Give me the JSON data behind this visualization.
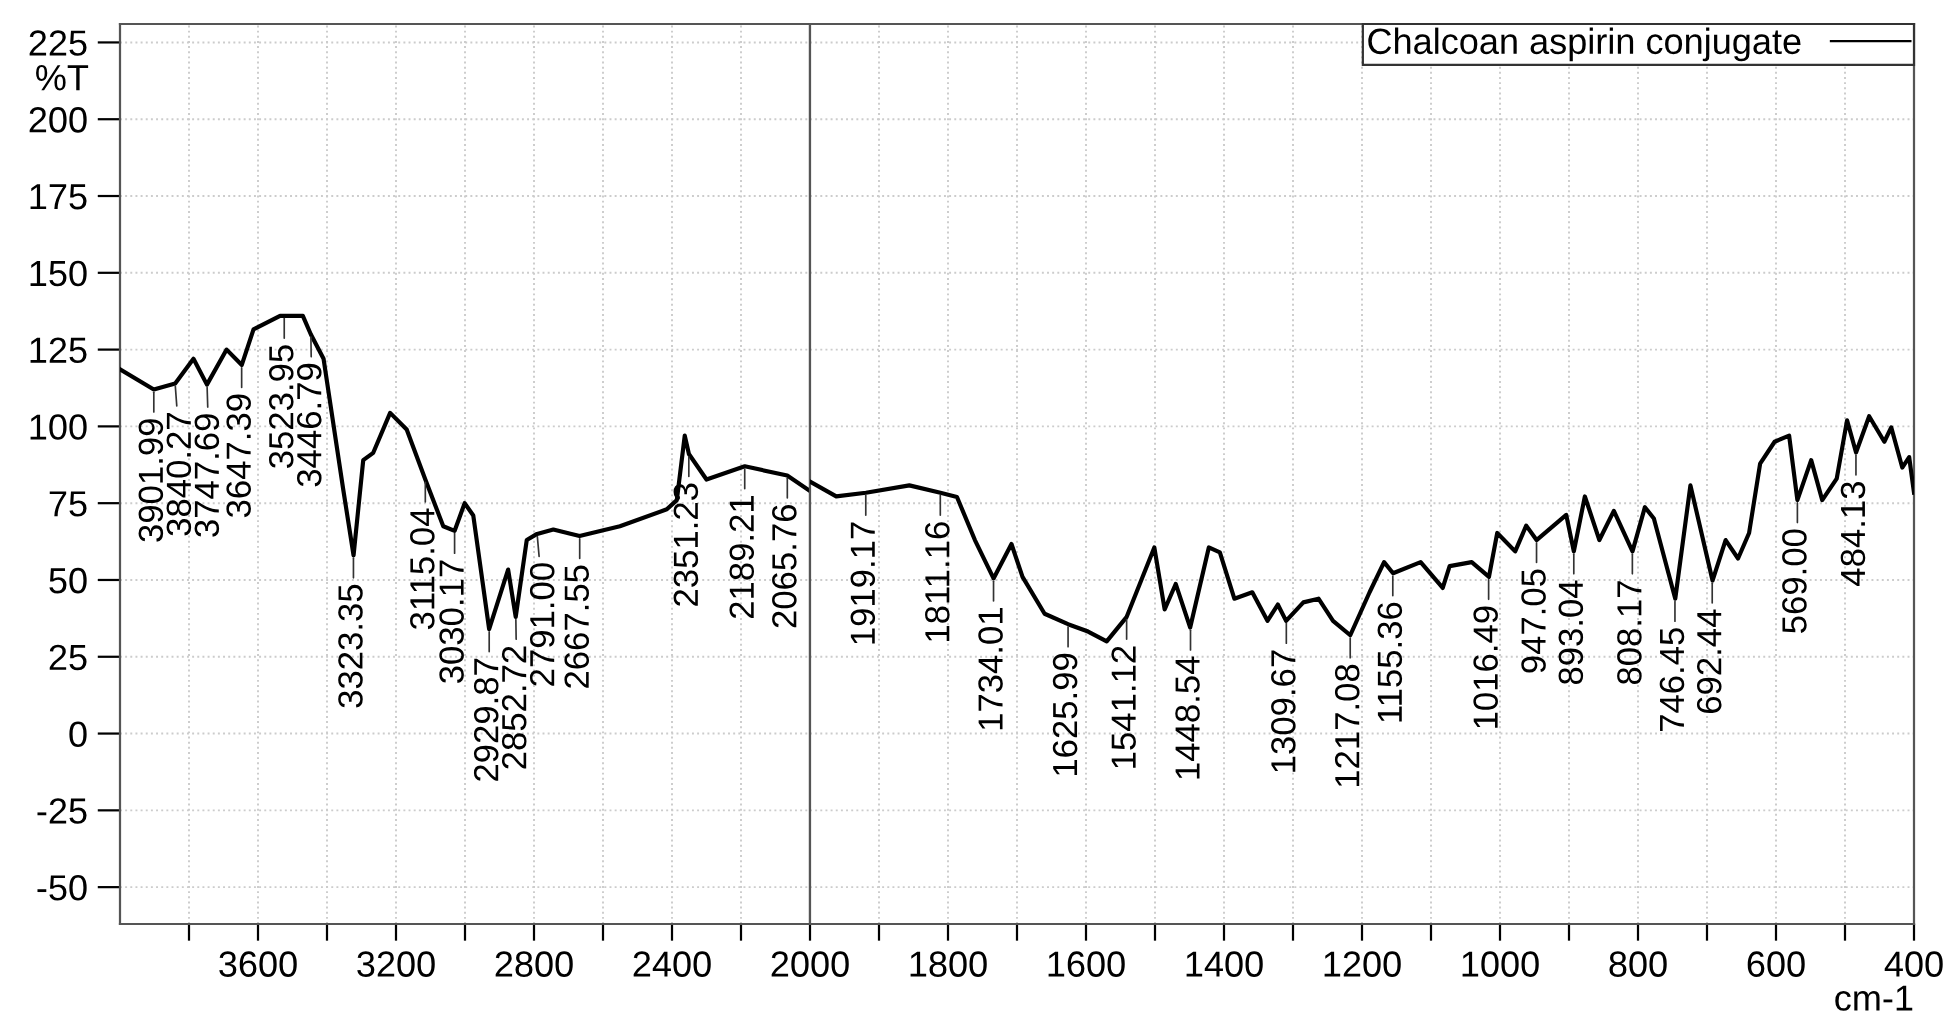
{
  "chart_data": [
    {
      "type": "line",
      "ylabel": "%T",
      "xlim": [
        4000,
        2000
      ],
      "ylim": [
        -62,
        231
      ],
      "xticks": [
        {
          "value": 3800,
          "label": null
        },
        3600,
        {
          "value": 3400,
          "label": null
        },
        3200,
        {
          "value": 3000,
          "label": null
        },
        2800,
        {
          "value": 2600,
          "label": null
        },
        2400,
        {
          "value": 2200,
          "label": null
        },
        2000
      ],
      "yticks": [
        -50,
        -25,
        0,
        25,
        50,
        75,
        100,
        125,
        150,
        175,
        200,
        225
      ],
      "grid": true,
      "line_style": "solid",
      "marker": "none",
      "series": [
        {
          "color": "#000000",
          "x": [
            4000,
            3902,
            3840,
            3787,
            3748,
            3691,
            3647,
            3613,
            3536,
            3524,
            3470,
            3447,
            3410,
            3353,
            3323,
            3295,
            3266,
            3217,
            3169,
            3115,
            3063,
            3030,
            3001,
            2976,
            2930,
            2875,
            2853,
            2821,
            2791,
            2744,
            2668,
            2551,
            2415,
            2386,
            2363,
            2351,
            2300,
            2189,
            2066,
            2000
          ],
          "values": [
            118.6,
            112,
            114,
            122,
            113.6,
            125,
            120,
            131.6,
            136,
            136,
            136,
            130,
            122,
            79.5,
            58,
            89,
            91.4,
            104.4,
            99,
            82.7,
            67.5,
            66,
            75,
            71,
            34,
            53.4,
            38,
            63,
            65,
            66.4,
            64.3,
            67.5,
            73,
            76,
            97,
            91,
            82.7,
            87,
            84,
            79
          ]
        }
      ],
      "annotations": [
        {
          "text": "3901.99",
          "x": 3901.99,
          "y": 112
        },
        {
          "text": "3840.27",
          "x": 3840.27,
          "y": 114
        },
        {
          "text": "3747.69",
          "x": 3747.69,
          "y": 113.6
        },
        {
          "text": "3647.39",
          "x": 3647.39,
          "y": 120
        },
        {
          "text": "3523.95",
          "x": 3523.95,
          "y": 136
        },
        {
          "text": "3446.79",
          "x": 3446.79,
          "y": 130
        },
        {
          "text": "3323.35",
          "x": 3323.35,
          "y": 58
        },
        {
          "text": "3115.04",
          "x": 3115.04,
          "y": 82.7
        },
        {
          "text": "3030.17",
          "x": 3030.17,
          "y": 66
        },
        {
          "text": "2929.87",
          "x": 2929.87,
          "y": 34
        },
        {
          "text": "2852.72",
          "x": 2852.72,
          "y": 38
        },
        {
          "text": "2791.00",
          "x": 2791.0,
          "y": 65
        },
        {
          "text": "2667.55",
          "x": 2667.55,
          "y": 64.3
        },
        {
          "text": "2351.23",
          "x": 2351.23,
          "y": 91
        },
        {
          "text": "2189.21",
          "x": 2189.21,
          "y": 87
        },
        {
          "text": "2065.76",
          "x": 2065.76,
          "y": 84
        }
      ]
    },
    {
      "type": "line",
      "xlabel": "cm-1",
      "xlim": [
        2000,
        400
      ],
      "ylim": [
        -62,
        231
      ],
      "xticks": [
        {
          "value": 1900,
          "label": null
        },
        1800,
        {
          "value": 1700,
          "label": null
        },
        1600,
        {
          "value": 1500,
          "label": null
        },
        1400,
        {
          "value": 1300,
          "label": null
        },
        1200,
        {
          "value": 1100,
          "label": null
        },
        1000,
        {
          "value": 900,
          "label": null
        },
        800,
        {
          "value": 700,
          "label": null
        },
        600,
        {
          "value": 500,
          "label": null
        },
        400
      ],
      "yticks": [
        -50,
        -25,
        0,
        25,
        50,
        75,
        100,
        125,
        150,
        175,
        200,
        225
      ],
      "tick_labels": "x",
      "grid": true,
      "legend": "top right",
      "line_style": "solid",
      "marker": "none",
      "series": [
        {
          "name": "Chalcoan aspirin conjugate",
          "color": "#000000",
          "x": [
            2000,
            1962,
            1919,
            1856,
            1811,
            1787,
            1761,
            1734,
            1708,
            1692,
            1660,
            1626,
            1597,
            1570,
            1541,
            1501,
            1486,
            1470,
            1449,
            1422,
            1406,
            1385,
            1359,
            1337,
            1322,
            1310,
            1285,
            1263,
            1242,
            1217,
            1189,
            1168,
            1155,
            1115,
            1083,
            1073,
            1041,
            1016,
            1004,
            978,
            962,
            947,
            904,
            893,
            877,
            856,
            835,
            808,
            790,
            777,
            746,
            724,
            692,
            673,
            655,
            639,
            623,
            602,
            581,
            569,
            549,
            533,
            512,
            497,
            484,
            465,
            443,
            433,
            417,
            407,
            400
          ],
          "values": [
            82,
            77.2,
            78.4,
            80.8,
            78.4,
            77,
            63,
            50.5,
            61.7,
            51,
            39,
            35.6,
            33.2,
            30,
            38,
            60.6,
            40.4,
            48.7,
            34.5,
            60.6,
            59,
            43.9,
            46,
            36.7,
            42,
            36.7,
            42.7,
            43.9,
            36.7,
            32,
            46,
            55.8,
            52.2,
            55.8,
            47.4,
            54.5,
            55.8,
            51,
            65.3,
            59.3,
            67.7,
            63,
            71.2,
            59.3,
            77.2,
            63,
            72.5,
            59.3,
            73.7,
            70,
            43.9,
            80.8,
            49.8,
            63,
            57,
            65.3,
            87.9,
            95,
            97,
            76,
            89,
            76,
            83,
            102,
            91.5,
            103.3,
            95,
            99.7,
            86.6,
            90,
            78.4
          ]
        }
      ],
      "annotations": [
        {
          "text": "1919.17",
          "x": 1919.17,
          "y": 78.4
        },
        {
          "text": "1811.16",
          "x": 1811.16,
          "y": 78.4
        },
        {
          "text": "1734.01",
          "x": 1734.01,
          "y": 50.5
        },
        {
          "text": "1625.99",
          "x": 1625.99,
          "y": 35.6
        },
        {
          "text": "1541.12",
          "x": 1541.12,
          "y": 38
        },
        {
          "text": "1448.54",
          "x": 1448.54,
          "y": 34.5
        },
        {
          "text": "1309.67",
          "x": 1309.67,
          "y": 36.7
        },
        {
          "text": "1217.08",
          "x": 1217.08,
          "y": 32
        },
        {
          "text": "1155.36",
          "x": 1155.36,
          "y": 52.2
        },
        {
          "text": "1016.49",
          "x": 1016.49,
          "y": 51
        },
        {
          "text": "947.05",
          "x": 947.05,
          "y": 63
        },
        {
          "text": "893.04",
          "x": 893.04,
          "y": 59.3
        },
        {
          "text": "808.17",
          "x": 808.17,
          "y": 59.3
        },
        {
          "text": "746.45",
          "x": 746.45,
          "y": 43.9
        },
        {
          "text": "692.44",
          "x": 692.44,
          "y": 49.8
        },
        {
          "text": "569.00",
          "x": 569.0,
          "y": 76
        },
        {
          "text": "484.13",
          "x": 484.13,
          "y": 91.5
        }
      ]
    }
  ]
}
